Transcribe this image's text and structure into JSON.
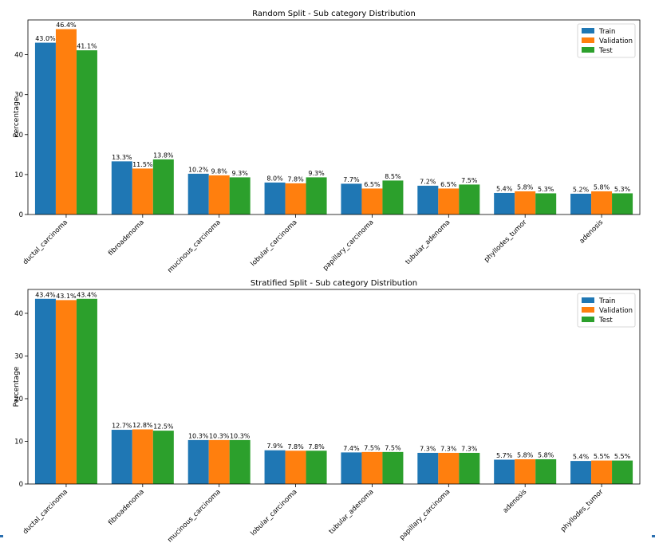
{
  "chart_data": [
    {
      "type": "bar",
      "title": "Random Split - Sub category Distribution",
      "xlabel": "",
      "ylabel": "Percentage",
      "ylim": [
        0,
        48.7
      ],
      "yticks": [
        0,
        10,
        20,
        30,
        40
      ],
      "grid": false,
      "legend_position": "top-right",
      "categories": [
        "ductal_carcinoma",
        "fibroadenoma",
        "mucinous_carcinoma",
        "lobular_carcinoma",
        "papillary_carcinoma",
        "tubular_adenoma",
        "phyllodes_tumor",
        "adenosis"
      ],
      "series": [
        {
          "name": "Train",
          "color": "#1f77b4",
          "values": [
            43.0,
            13.3,
            10.2,
            8.0,
            7.7,
            7.2,
            5.4,
            5.2
          ],
          "labels": [
            "43.0%",
            "13.3%",
            "10.2%",
            "8.0%",
            "7.7%",
            "7.2%",
            "5.4%",
            "5.2%"
          ]
        },
        {
          "name": "Validation",
          "color": "#ff7f0e",
          "values": [
            46.4,
            11.5,
            9.8,
            7.8,
            6.5,
            6.5,
            5.8,
            5.8
          ],
          "labels": [
            "46.4%",
            "11.5%",
            "9.8%",
            "7.8%",
            "6.5%",
            "6.5%",
            "5.8%",
            "5.8%"
          ]
        },
        {
          "name": "Test",
          "color": "#2ca02c",
          "values": [
            41.1,
            13.8,
            9.3,
            9.3,
            8.5,
            7.5,
            5.3,
            5.3
          ],
          "labels": [
            "41.1%",
            "13.8%",
            "9.3%",
            "9.3%",
            "8.5%",
            "7.5%",
            "5.3%",
            "5.3%"
          ]
        }
      ]
    },
    {
      "type": "bar",
      "title": "Stratified Split - Sub category Distribution",
      "xlabel": "",
      "ylabel": "Percentage",
      "ylim": [
        0,
        45.6
      ],
      "yticks": [
        0,
        10,
        20,
        30,
        40
      ],
      "grid": false,
      "legend_position": "top-right",
      "categories": [
        "ductal_carcinoma",
        "fibroadenoma",
        "mucinous_carcinoma",
        "lobular_carcinoma",
        "tubular_adenoma",
        "papillary_carcinoma",
        "adenosis",
        "phyllodes_tumor"
      ],
      "series": [
        {
          "name": "Train",
          "color": "#1f77b4",
          "values": [
            43.4,
            12.7,
            10.3,
            7.9,
            7.4,
            7.3,
            5.7,
            5.4
          ],
          "labels": [
            "43.4%",
            "12.7%",
            "10.3%",
            "7.9%",
            "7.4%",
            "7.3%",
            "5.7%",
            "5.4%"
          ]
        },
        {
          "name": "Validation",
          "color": "#ff7f0e",
          "values": [
            43.1,
            12.8,
            10.3,
            7.8,
            7.5,
            7.3,
            5.8,
            5.5
          ],
          "labels": [
            "43.1%",
            "12.8%",
            "10.3%",
            "7.8%",
            "7.5%",
            "7.3%",
            "5.8%",
            "5.5%"
          ]
        },
        {
          "name": "Test",
          "color": "#2ca02c",
          "values": [
            43.4,
            12.5,
            10.3,
            7.8,
            7.5,
            7.3,
            5.8,
            5.5
          ],
          "labels": [
            "43.4%",
            "12.5%",
            "10.3%",
            "7.8%",
            "7.5%",
            "7.3%",
            "5.8%",
            "5.5%"
          ]
        }
      ]
    }
  ]
}
